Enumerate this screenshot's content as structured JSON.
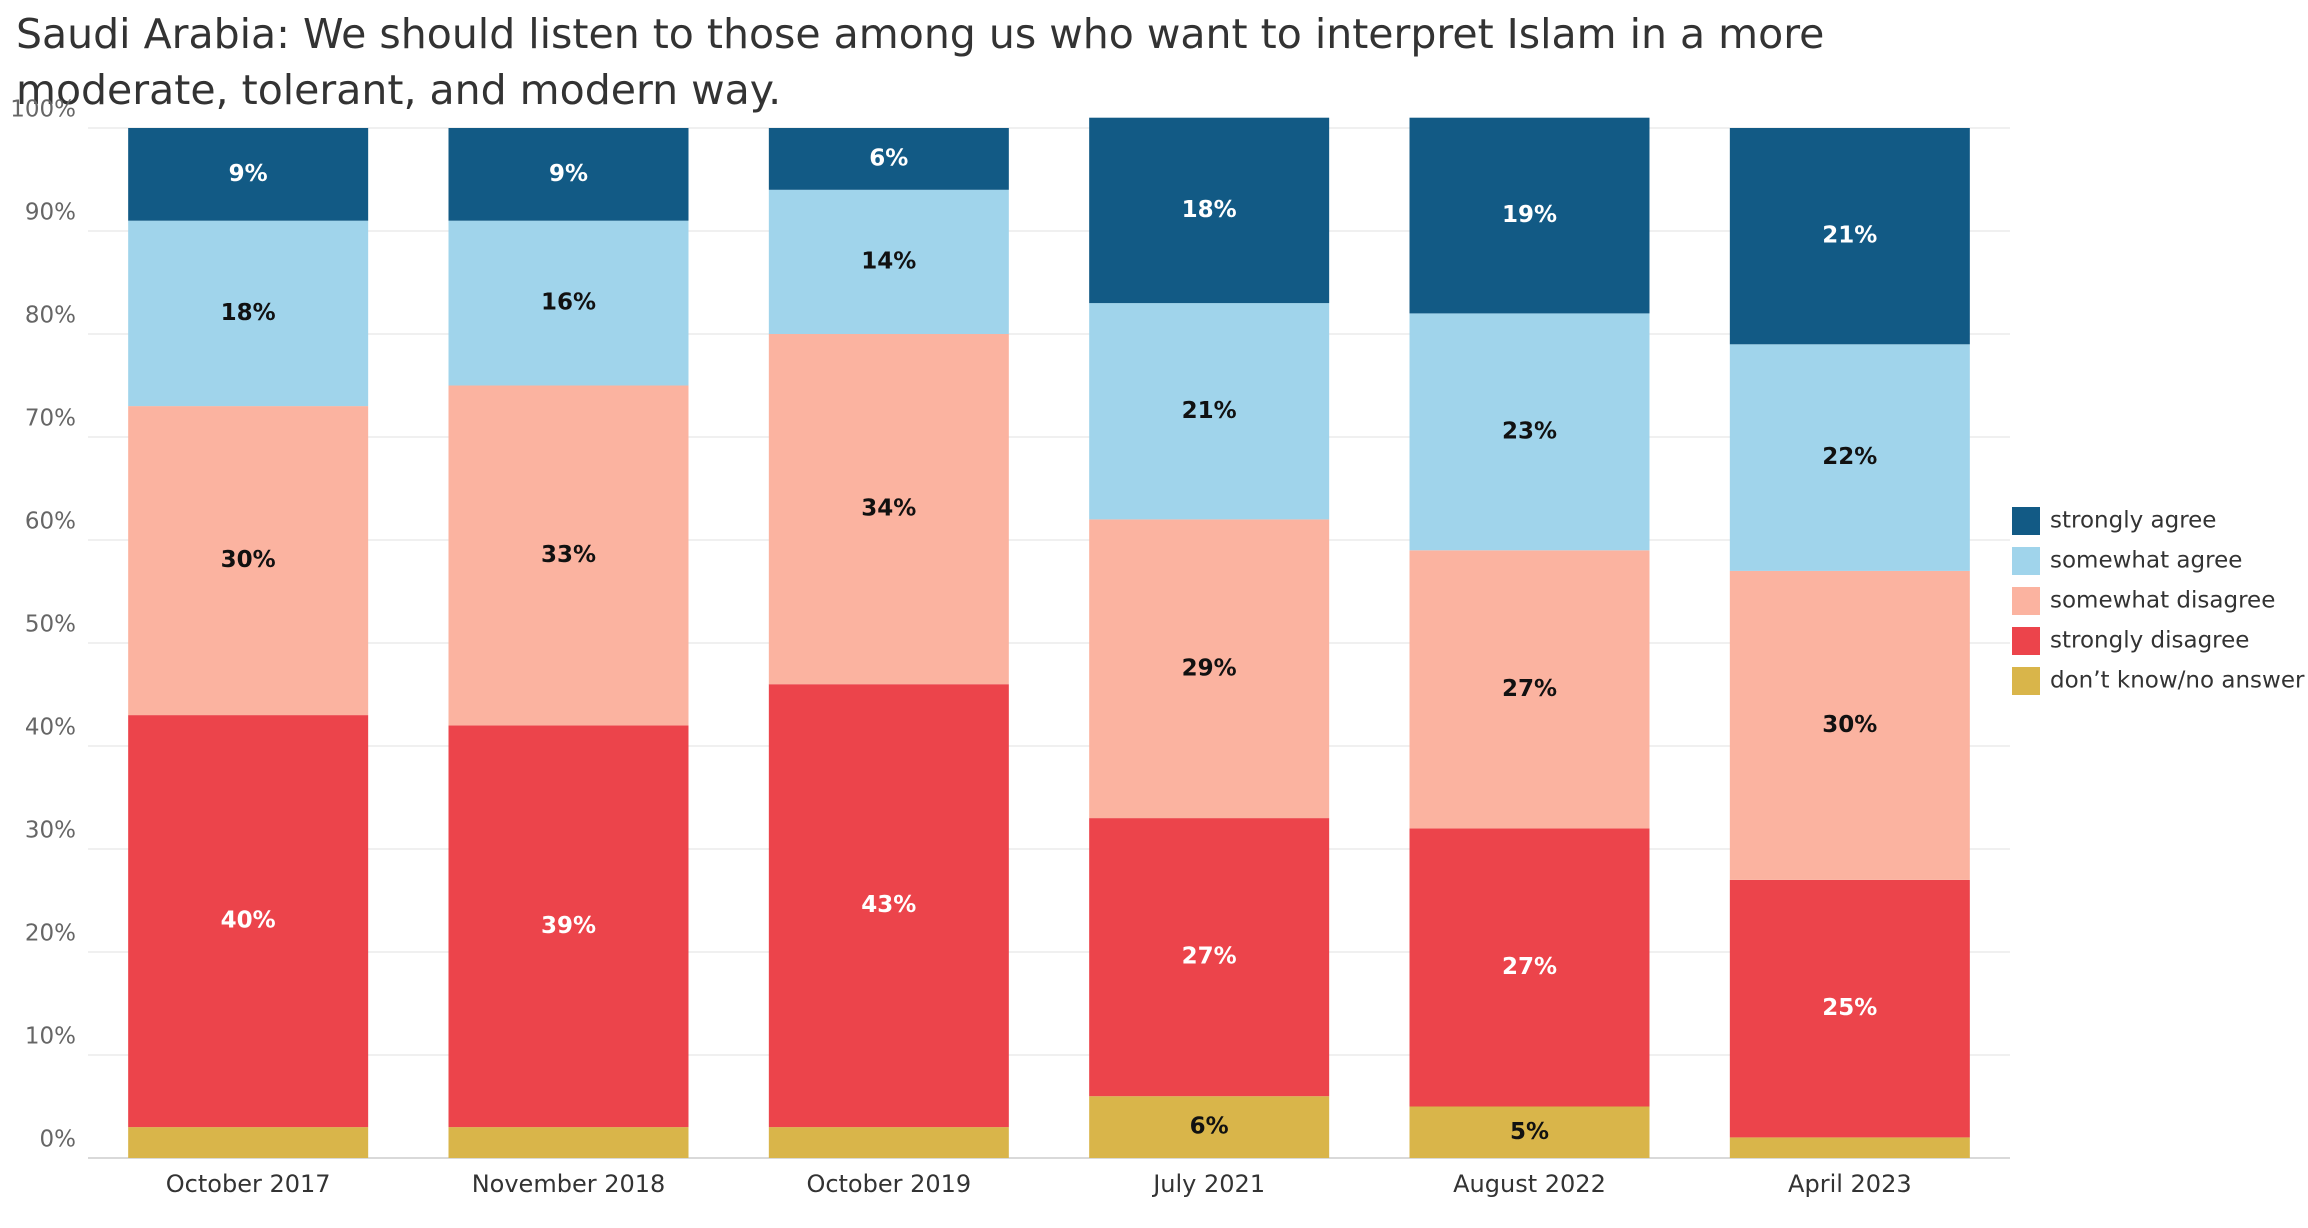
{
  "chart_data": {
    "type": "stacked-bar",
    "title": "Saudi Arabia: We should listen to those among us who want to interpret Islam in a more moderate, tolerant, and modern way.",
    "categories": [
      "October 2017",
      "November 2018",
      "October 2019",
      "July 2021",
      "August 2022",
      "April 2023"
    ],
    "series": [
      {
        "name": "don’t know/no answer",
        "color": "#d9b54a",
        "values": [
          3,
          3,
          3,
          6,
          5,
          2
        ],
        "value_labels": [
          null,
          null,
          null,
          "6%",
          "5%",
          null
        ]
      },
      {
        "name": "strongly disagree",
        "color": "#ec444b",
        "values": [
          40,
          39,
          43,
          27,
          27,
          25
        ],
        "value_labels": [
          "40%",
          "39%",
          "43%",
          "27%",
          "27%",
          "25%"
        ]
      },
      {
        "name": "somewhat disagree",
        "color": "#fbb3a0",
        "values": [
          30,
          33,
          34,
          29,
          27,
          30
        ],
        "value_labels": [
          "30%",
          "33%",
          "34%",
          "29%",
          "27%",
          "30%"
        ]
      },
      {
        "name": "somewhat agree",
        "color": "#a0d4eb",
        "values": [
          18,
          16,
          14,
          21,
          23,
          22
        ],
        "value_labels": [
          "18%",
          "16%",
          "14%",
          "21%",
          "23%",
          "22%"
        ]
      },
      {
        "name": "strongly agree",
        "color": "#125a85",
        "values": [
          9,
          9,
          6,
          18,
          19,
          21
        ],
        "value_labels": [
          "9%",
          "9%",
          "6%",
          "18%",
          "19%",
          "21%"
        ]
      }
    ],
    "ylim": [
      0,
      100
    ],
    "yticks": [
      {
        "value": 0,
        "label": "0%"
      },
      {
        "value": 10,
        "label": "10%"
      },
      {
        "value": 20,
        "label": "20%"
      },
      {
        "value": 30,
        "label": "30%"
      },
      {
        "value": 40,
        "label": "40%"
      },
      {
        "value": 50,
        "label": "50%"
      },
      {
        "value": 60,
        "label": "60%"
      },
      {
        "value": 70,
        "label": "70%"
      },
      {
        "value": 80,
        "label": "80%"
      },
      {
        "value": 90,
        "label": "90%"
      },
      {
        "value": 100,
        "label": "100%"
      }
    ],
    "grid": true,
    "legend": "right"
  }
}
